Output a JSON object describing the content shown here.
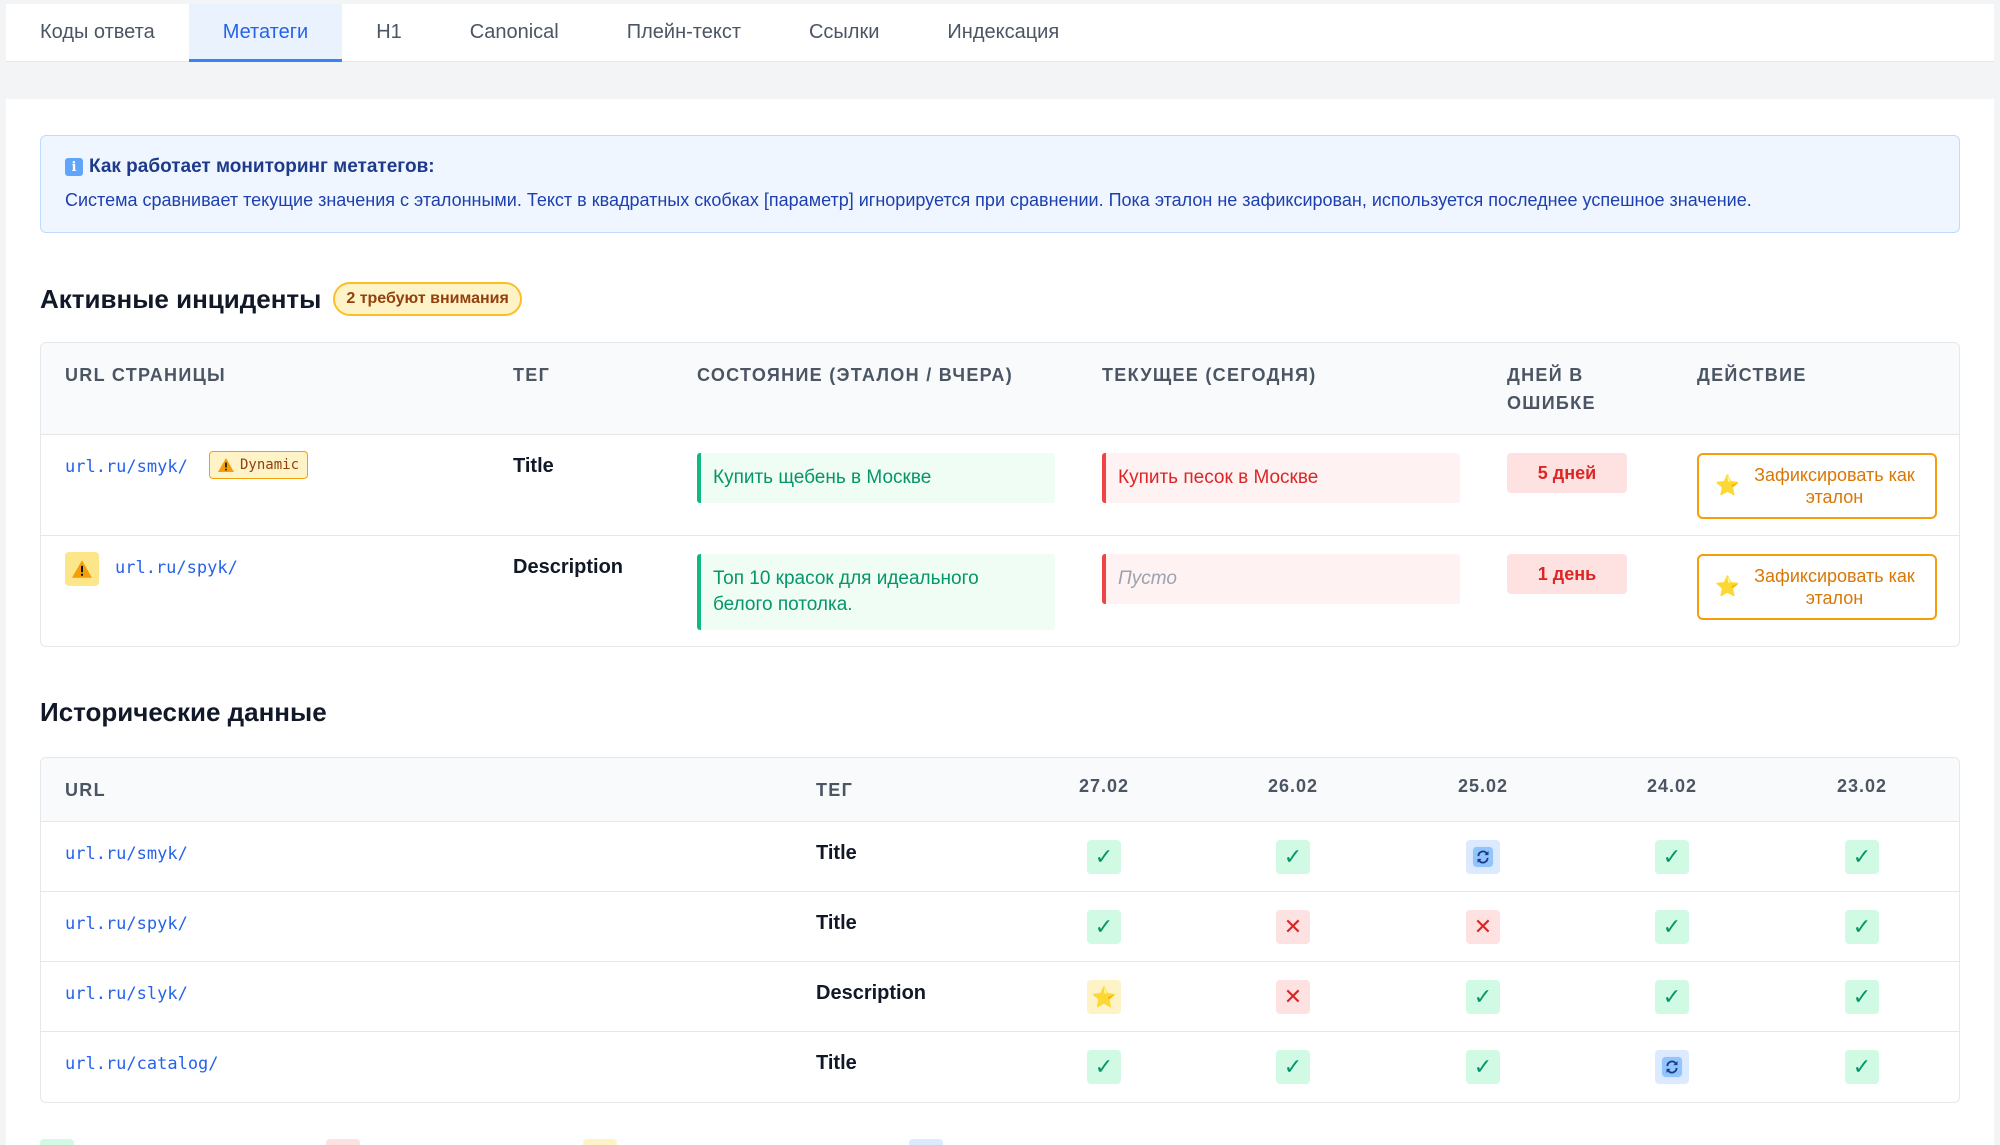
{
  "tabs": [
    {
      "label": "Коды ответа",
      "active": false
    },
    {
      "label": "Метатеги",
      "active": true
    },
    {
      "label": "H1",
      "active": false
    },
    {
      "label": "Canonical",
      "active": false
    },
    {
      "label": "Плейн-текст",
      "active": false
    },
    {
      "label": "Ссылки",
      "active": false
    },
    {
      "label": "Индексация",
      "active": false
    }
  ],
  "info": {
    "icon": "info-icon",
    "title": "Как работает мониторинг метатегов:",
    "text": "Система сравнивает текущие значения с эталонными. Текст в квадратных скобках [параметр] игнорируется при сравнении. Пока эталон не зафиксирован, используется последнее успешное значение."
  },
  "incidents": {
    "title": "Активные инциденты",
    "badge": "2 требуют внимания",
    "columns": [
      "URL страницы",
      "Тег",
      "Состояние (эталон / вчера)",
      "Текущее (сегодня)",
      "Дней в ошибке",
      "Действие"
    ],
    "rows": [
      {
        "url": "url.ru/smyk/",
        "badge": "Dynamic",
        "tag": "Title",
        "reference": "Купить щебень в Москве",
        "current": "Купить песок в Москве",
        "days": "5 дней",
        "action": "Зафиксировать как эталон"
      },
      {
        "url": "url.ru/spyk/",
        "warning": true,
        "tag": "Description",
        "reference": "Топ 10 красок для идеального белого потолка.",
        "current": "Пусто",
        "days": "1 день",
        "action": "Зафиксировать как эталон"
      }
    ]
  },
  "history": {
    "title": "Исторические данные",
    "columns": [
      "URL",
      "Тег",
      "27.02",
      "26.02",
      "25.02",
      "24.02",
      "23.02"
    ],
    "rows": [
      {
        "url": "url.ru/smyk/",
        "tag": "Title",
        "statuses": [
          "ok",
          "ok",
          "sync",
          "ok",
          "ok"
        ]
      },
      {
        "url": "url.ru/spyk/",
        "tag": "Title",
        "statuses": [
          "ok",
          "bad",
          "bad",
          "ok",
          "ok"
        ]
      },
      {
        "url": "url.ru/slyk/",
        "tag": "Description",
        "statuses": [
          "star",
          "bad",
          "ok",
          "ok",
          "ok"
        ]
      },
      {
        "url": "url.ru/catalog/",
        "tag": "Title",
        "statuses": [
          "ok",
          "ok",
          "ok",
          "sync",
          "ok"
        ]
      }
    ]
  },
  "colors": {
    "accent": "#2563eb",
    "ok": "#059669",
    "bad": "#dc2626",
    "warn": "#f59e0b"
  }
}
